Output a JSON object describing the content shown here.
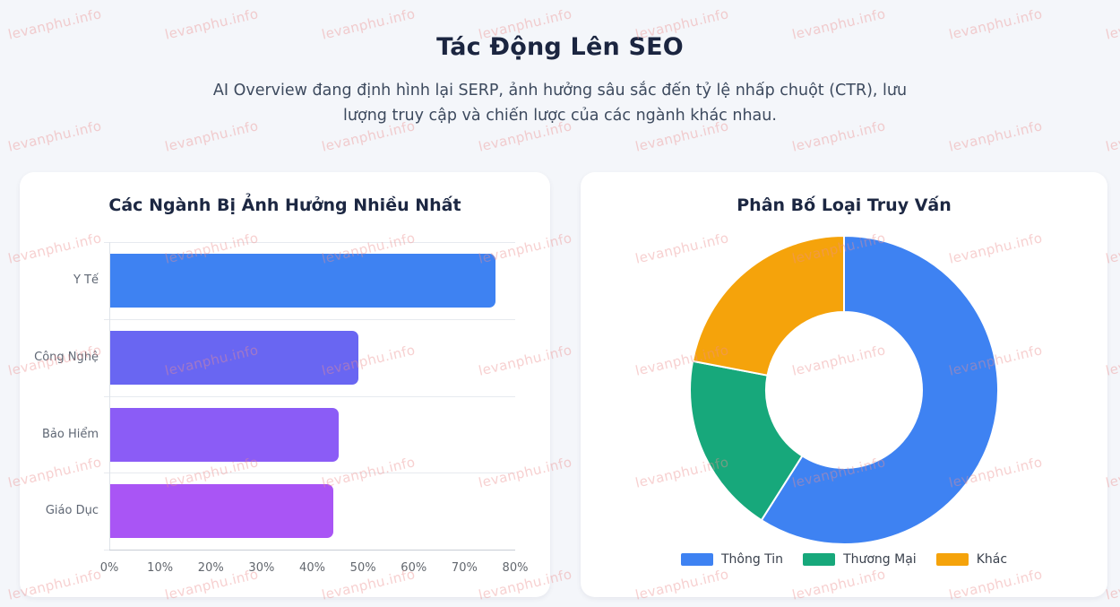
{
  "header": {
    "title": "Tác Động Lên SEO",
    "subtitle": "AI Overview đang định hình lại SERP, ảnh hưởng sâu sắc đến tỷ lệ nhấp chuột (CTR), lưu lượng truy cập và chiến lược của các ngành khác nhau."
  },
  "watermark": {
    "text": "levanphu.info"
  },
  "colors": {
    "background": "#f4f6fa",
    "card": "#ffffff",
    "heading": "#1b2540",
    "subtitle_text": "#3d4a5e",
    "axis_label": "#5f6774",
    "watermark_pink": "#eb8f8f"
  },
  "chart_data": [
    {
      "type": "bar",
      "orientation": "horizontal",
      "title": "Các Ngành Bị Ảnh Hưởng Nhiều Nhất",
      "categories": [
        "Y Tế",
        "Công Nghệ",
        "Bảo Hiểm",
        "Giáo Dục"
      ],
      "values": [
        76,
        49,
        45,
        44
      ],
      "unit": "%",
      "bar_colors": [
        "#3e82f2",
        "#6966f2",
        "#8b5cf6",
        "#a955f5"
      ],
      "xlabel": "",
      "ylabel": "",
      "xlim": [
        0,
        80
      ],
      "x_ticks": [
        "0%",
        "10%",
        "20%",
        "30%",
        "40%",
        "50%",
        "60%",
        "70%",
        "80%"
      ],
      "grid": true,
      "legend": "none"
    },
    {
      "type": "pie",
      "style": "donut",
      "title": "Phân Bố Loại Truy Vấn",
      "labels": [
        "Thông Tin",
        "Thương Mại",
        "Khác"
      ],
      "values": [
        59,
        19,
        22
      ],
      "unit": "%",
      "colors": [
        "#3e82f2",
        "#17a87b",
        "#f5a30b"
      ],
      "cutout_ratio": 0.5,
      "start_angle_deg": 0,
      "direction": "clockwise",
      "legend_position": "bottom",
      "slice_border_color": "#ffffff"
    }
  ]
}
